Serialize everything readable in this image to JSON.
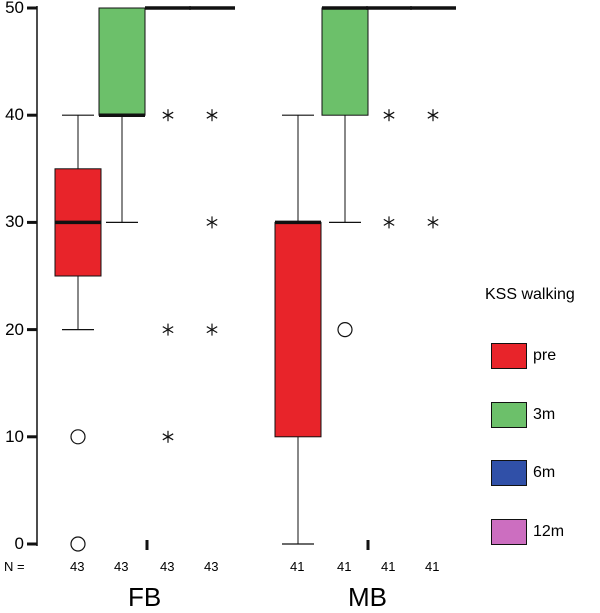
{
  "chart_data": {
    "type": "boxplot",
    "title": "",
    "xlabel": "",
    "ylabel": "",
    "ylim": [
      0,
      50
    ],
    "y_ticks": [
      0,
      10,
      20,
      30,
      40,
      50
    ],
    "groups": [
      "FB",
      "MB"
    ],
    "n_label": "N =",
    "legend_title": "KSS walking",
    "series": [
      {
        "name": "pre",
        "color": "#e8242a"
      },
      {
        "name": "3m",
        "color": "#6cc06a"
      },
      {
        "name": "6m",
        "color": "#3050a8"
      },
      {
        "name": "12m",
        "color": "#cc6ec0"
      }
    ],
    "boxes": [
      {
        "group": "FB",
        "series": "pre",
        "n": "43",
        "whisker_low": 20,
        "q1": 25,
        "median": 30,
        "q3": 35,
        "whisker_high": 40,
        "outliers": [
          10,
          0
        ],
        "extremes": []
      },
      {
        "group": "FB",
        "series": "3m",
        "n": "43",
        "whisker_low": 30,
        "q1": 40,
        "median": 40,
        "q3": 50,
        "whisker_high": 50,
        "outliers": [],
        "extremes": []
      },
      {
        "group": "FB",
        "series": "6m",
        "n": "43",
        "whisker_low": 50,
        "q1": 50,
        "median": 50,
        "q3": 50,
        "whisker_high": 50,
        "outliers": [],
        "extremes": [
          40,
          20,
          10
        ]
      },
      {
        "group": "FB",
        "series": "12m",
        "n": "43",
        "whisker_low": 50,
        "q1": 50,
        "median": 50,
        "q3": 50,
        "whisker_high": 50,
        "outliers": [],
        "extremes": [
          40,
          30,
          20
        ]
      },
      {
        "group": "MB",
        "series": "pre",
        "n": "41",
        "whisker_low": 0,
        "q1": 10,
        "median": 30,
        "q3": 30,
        "whisker_high": 40,
        "outliers": [],
        "extremes": []
      },
      {
        "group": "MB",
        "series": "3m",
        "n": "41",
        "whisker_low": 30,
        "q1": 40,
        "median": 50,
        "q3": 50,
        "whisker_high": 50,
        "outliers": [
          20
        ],
        "extremes": []
      },
      {
        "group": "MB",
        "series": "6m",
        "n": "41",
        "whisker_low": 50,
        "q1": 50,
        "median": 50,
        "q3": 50,
        "whisker_high": 50,
        "outliers": [],
        "extremes": [
          40,
          30
        ]
      },
      {
        "group": "MB",
        "series": "12m",
        "n": "41",
        "whisker_low": 50,
        "q1": 50,
        "median": 50,
        "q3": 50,
        "whisker_high": 50,
        "outliers": [],
        "extremes": [
          40,
          30
        ]
      }
    ]
  }
}
